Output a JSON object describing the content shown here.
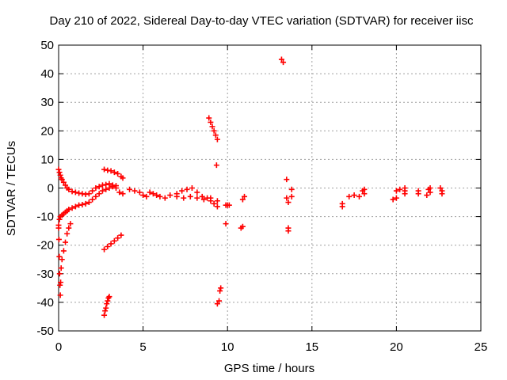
{
  "chart_data": {
    "type": "scatter",
    "title": "Day 210 of 2022, Sidereal Day-to-day VTEC variation (SDTVAR) for receiver iisc",
    "xlabel": "GPS time / hours",
    "ylabel": "SDTVAR / TECUs",
    "xlim": [
      0,
      25
    ],
    "ylim": [
      -50,
      50
    ],
    "xticks": [
      0,
      5,
      10,
      15,
      20,
      25
    ],
    "yticks": [
      -50,
      -40,
      -30,
      -20,
      -10,
      0,
      10,
      20,
      30,
      40,
      50
    ],
    "grid": true,
    "marker": "+",
    "series": [
      {
        "name": "SDTVAR",
        "color": "#ff0000",
        "points": [
          [
            0.0,
            6.5
          ],
          [
            0.05,
            5.5
          ],
          [
            0.1,
            4.5
          ],
          [
            0.15,
            3.5
          ],
          [
            0.2,
            3.0
          ],
          [
            0.3,
            2.0
          ],
          [
            0.4,
            1.0
          ],
          [
            0.5,
            0.0
          ],
          [
            0.6,
            -0.5
          ],
          [
            0.8,
            -1.2
          ],
          [
            1.0,
            -1.5
          ],
          [
            1.2,
            -1.8
          ],
          [
            1.4,
            -2.0
          ],
          [
            1.6,
            -2.2
          ],
          [
            1.8,
            -2.0
          ],
          [
            0.0,
            -13.0
          ],
          [
            0.05,
            -11.0
          ],
          [
            0.1,
            -10.0
          ],
          [
            0.2,
            -9.5
          ],
          [
            0.3,
            -9.0
          ],
          [
            0.4,
            -8.5
          ],
          [
            0.5,
            -8.0
          ],
          [
            0.6,
            -7.5
          ],
          [
            0.8,
            -7.0
          ],
          [
            1.0,
            -6.5
          ],
          [
            1.2,
            -6.0
          ],
          [
            1.4,
            -5.8
          ],
          [
            1.6,
            -5.5
          ],
          [
            1.8,
            -5.0
          ],
          [
            2.0,
            -4.0
          ],
          [
            2.2,
            -3.0
          ],
          [
            2.4,
            -2.0
          ],
          [
            2.6,
            -1.0
          ],
          [
            2.8,
            -0.5
          ],
          [
            3.0,
            0.0
          ],
          [
            3.2,
            0.5
          ],
          [
            3.4,
            0.8
          ],
          [
            2.0,
            -1.0
          ],
          [
            2.2,
            0.0
          ],
          [
            2.4,
            0.5
          ],
          [
            2.6,
            1.0
          ],
          [
            2.8,
            1.2
          ],
          [
            3.0,
            1.5
          ],
          [
            3.2,
            1.0
          ],
          [
            3.4,
            0.0
          ],
          [
            3.6,
            -1.5
          ],
          [
            3.8,
            -2.0
          ],
          [
            2.7,
            6.5
          ],
          [
            2.9,
            6.2
          ],
          [
            3.1,
            6.0
          ],
          [
            3.3,
            5.5
          ],
          [
            3.5,
            5.0
          ],
          [
            3.7,
            4.0
          ],
          [
            3.8,
            3.5
          ],
          [
            4.2,
            -0.5
          ],
          [
            4.5,
            -1.0
          ],
          [
            4.8,
            -1.5
          ],
          [
            5.0,
            -2.5
          ],
          [
            5.2,
            -3.0
          ],
          [
            5.4,
            -1.5
          ],
          [
            5.6,
            -2.0
          ],
          [
            5.8,
            -2.5
          ],
          [
            6.0,
            -3.0
          ],
          [
            6.3,
            -3.5
          ],
          [
            6.6,
            -2.5
          ],
          [
            7.0,
            -2.0
          ],
          [
            7.3,
            -1.0
          ],
          [
            7.6,
            -0.5
          ],
          [
            7.9,
            0.0
          ],
          [
            8.2,
            -1.5
          ],
          [
            8.5,
            -3.0
          ],
          [
            8.8,
            -3.5
          ],
          [
            9.0,
            -4.5
          ],
          [
            9.2,
            -5.5
          ],
          [
            9.4,
            -6.5
          ],
          [
            7.0,
            -3.0
          ],
          [
            7.4,
            -3.5
          ],
          [
            7.8,
            -3.0
          ],
          [
            8.2,
            -3.5
          ],
          [
            8.6,
            -4.0
          ],
          [
            9.0,
            -3.5
          ],
          [
            9.4,
            -4.5
          ],
          [
            0.0,
            -14.0
          ],
          [
            0.02,
            -18.0
          ],
          [
            0.04,
            -24.0
          ],
          [
            0.06,
            -30.0
          ],
          [
            0.08,
            -34.0
          ],
          [
            0.1,
            -37.5
          ],
          [
            0.12,
            -33.0
          ],
          [
            0.15,
            -28.0
          ],
          [
            0.2,
            -25.0
          ],
          [
            0.3,
            -22.0
          ],
          [
            0.4,
            -19.0
          ],
          [
            0.5,
            -16.0
          ],
          [
            0.6,
            -14.0
          ],
          [
            0.7,
            -12.5
          ],
          [
            2.7,
            -21.5
          ],
          [
            2.9,
            -20.5
          ],
          [
            3.1,
            -19.5
          ],
          [
            3.3,
            -18.5
          ],
          [
            3.5,
            -17.5
          ],
          [
            3.7,
            -16.5
          ],
          [
            2.7,
            -44.5
          ],
          [
            2.75,
            -43.0
          ],
          [
            2.8,
            -42.0
          ],
          [
            2.85,
            -40.5
          ],
          [
            2.9,
            -39.5
          ],
          [
            2.95,
            -38.5
          ],
          [
            3.0,
            -38.0
          ],
          [
            8.9,
            24.5
          ],
          [
            9.0,
            23.0
          ],
          [
            9.1,
            21.5
          ],
          [
            9.2,
            20.0
          ],
          [
            9.3,
            18.5
          ],
          [
            9.4,
            17.0
          ],
          [
            9.35,
            8.0
          ],
          [
            9.4,
            -40.5
          ],
          [
            9.5,
            -39.5
          ],
          [
            9.55,
            -36.0
          ],
          [
            9.6,
            -35.0
          ],
          [
            9.9,
            -12.5
          ],
          [
            9.9,
            -6.0
          ],
          [
            10.0,
            -6.0
          ],
          [
            10.1,
            -6.0
          ],
          [
            10.8,
            -14.0
          ],
          [
            10.9,
            -13.5
          ],
          [
            10.9,
            -4.0
          ],
          [
            11.0,
            -3.0
          ],
          [
            13.2,
            45.0
          ],
          [
            13.3,
            44.0
          ],
          [
            13.5,
            3.0
          ],
          [
            13.5,
            -3.5
          ],
          [
            13.6,
            -5.0
          ],
          [
            13.6,
            -14.0
          ],
          [
            13.6,
            -15.0
          ],
          [
            13.8,
            -0.5
          ],
          [
            13.8,
            -3.0
          ],
          [
            16.8,
            -5.5
          ],
          [
            16.8,
            -6.5
          ],
          [
            17.2,
            -3.0
          ],
          [
            17.5,
            -2.5
          ],
          [
            17.8,
            -3.0
          ],
          [
            18.0,
            -1.0
          ],
          [
            18.1,
            -0.5
          ],
          [
            18.1,
            -2.0
          ],
          [
            19.8,
            -4.0
          ],
          [
            20.0,
            -3.5
          ],
          [
            20.0,
            -1.0
          ],
          [
            20.2,
            -0.5
          ],
          [
            20.5,
            -1.0
          ],
          [
            20.5,
            0.0
          ],
          [
            20.5,
            -2.0
          ],
          [
            21.3,
            -2.0
          ],
          [
            21.3,
            -1.0
          ],
          [
            21.8,
            -2.5
          ],
          [
            21.9,
            -0.5
          ],
          [
            22.0,
            -1.5
          ],
          [
            22.0,
            0.0
          ],
          [
            22.6,
            0.0
          ],
          [
            22.7,
            -1.0
          ],
          [
            22.7,
            -2.0
          ]
        ]
      }
    ]
  }
}
